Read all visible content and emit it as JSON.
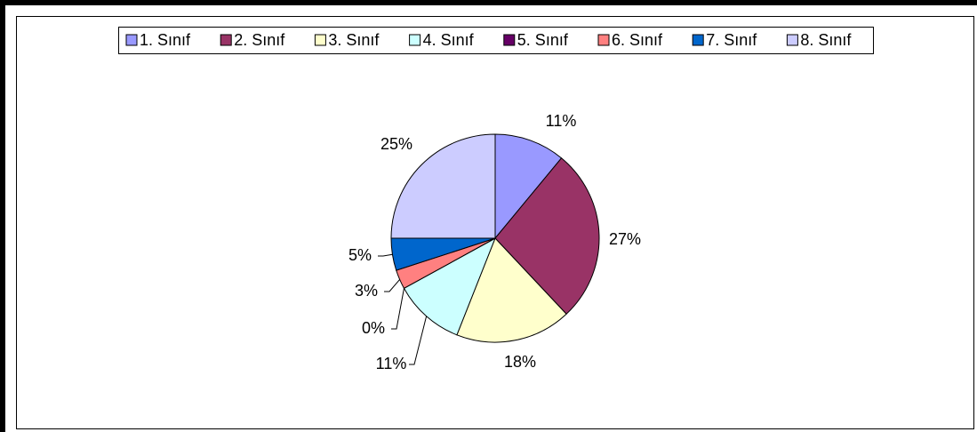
{
  "chart_data": {
    "type": "pie",
    "categories": [
      "1. Sınıf",
      "2. Sınıf",
      "3. Sınıf",
      "4. Sınıf",
      "5. Sınıf",
      "6. Sınıf",
      "7. Sınıf",
      "8. Sınıf"
    ],
    "values": [
      11,
      27,
      18,
      11,
      0,
      3,
      5,
      25
    ],
    "value_labels": [
      "11%",
      "27%",
      "18%",
      "11%",
      "0%",
      "3%",
      "5%",
      "25%"
    ],
    "colors": [
      "#9999ff",
      "#993366",
      "#ffffcc",
      "#ccffff",
      "#660066",
      "#ff8080",
      "#0066cc",
      "#ccccff"
    ],
    "legend": "top"
  }
}
